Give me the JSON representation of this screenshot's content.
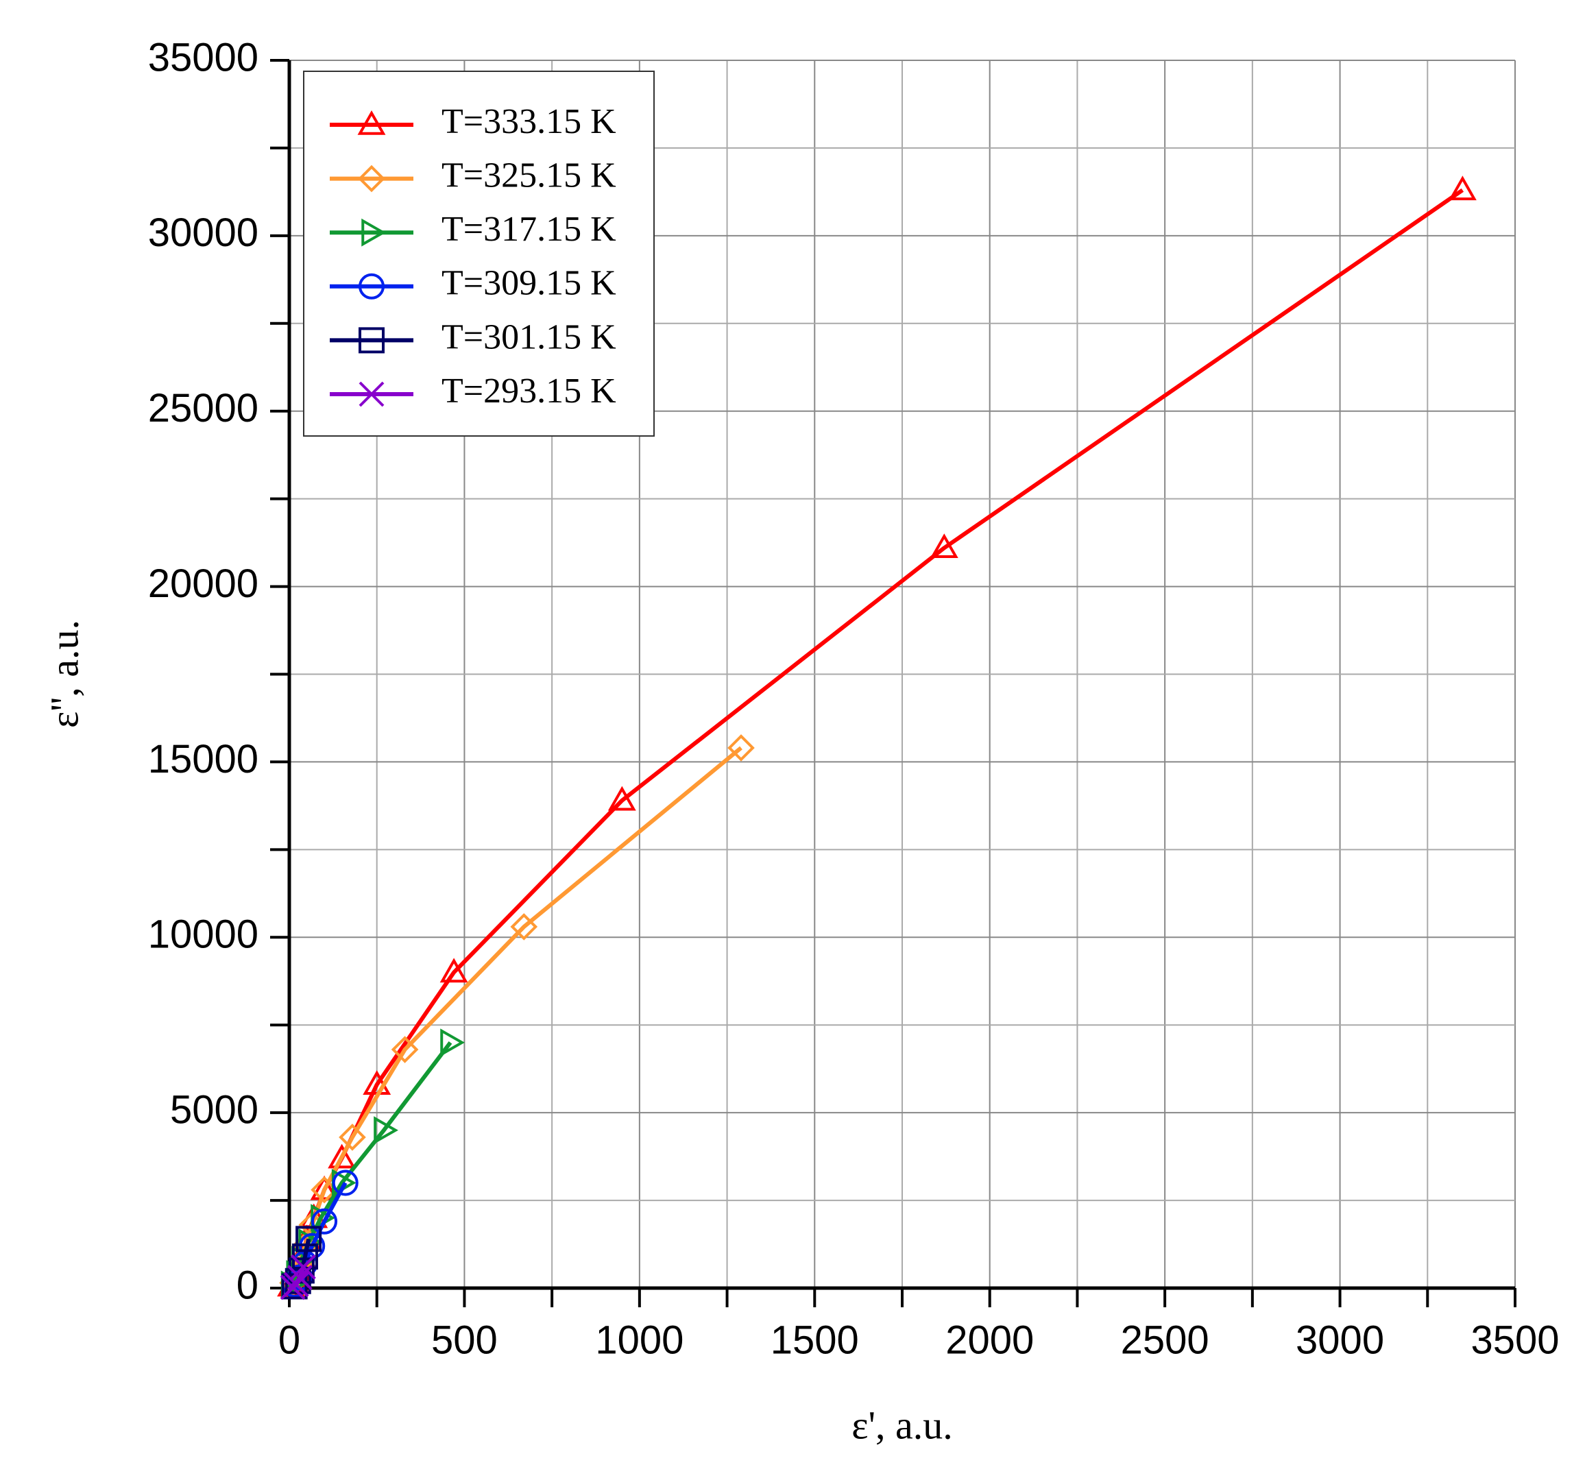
{
  "chart_data": {
    "type": "line",
    "xlabel": "ε', a.u.",
    "ylabel": "ε'', a.u.",
    "xlim": [
      0,
      3500
    ],
    "xticks": [
      0,
      500,
      1000,
      1500,
      2000,
      2500,
      3000,
      3500
    ],
    "ylim": [
      0,
      35000
    ],
    "yticks": [
      0,
      5000,
      10000,
      15000,
      20000,
      25000,
      30000,
      35000
    ],
    "grid": true,
    "legend": "upper left",
    "series": [
      {
        "name": "T=333.15 K",
        "color": "#ff0000",
        "marker": "triangle-up",
        "x": [
          5,
          15,
          25,
          35,
          50,
          70,
          100,
          150,
          250,
          470,
          950,
          1870,
          3350
        ],
        "values": [
          50,
          200,
          500,
          900,
          1400,
          2000,
          2800,
          3700,
          5800,
          9000,
          13900,
          21100,
          31300
        ]
      },
      {
        "name": "T=325.15 K",
        "color": "#ff9933",
        "marker": "diamond",
        "x": [
          10,
          20,
          30,
          45,
          65,
          100,
          180,
          330,
          670,
          1290
        ],
        "values": [
          150,
          400,
          700,
          1200,
          1800,
          2800,
          4300,
          6800,
          10300,
          15400
        ]
      },
      {
        "name": "T=317.15 K",
        "color": "#119933",
        "marker": "triangle-right",
        "x": [
          5,
          20,
          35,
          55,
          90,
          150,
          270,
          460
        ],
        "values": [
          100,
          400,
          800,
          1300,
          2000,
          3000,
          4500,
          7000
        ]
      },
      {
        "name": "T=309.15 K",
        "color": "#0022ee",
        "marker": "circle",
        "x": [
          15,
          30,
          45,
          65,
          100,
          160
        ],
        "values": [
          100,
          300,
          700,
          1200,
          1900,
          3000
        ]
      },
      {
        "name": "T=301.15 K",
        "color": "#000066",
        "marker": "square",
        "x": [
          15,
          25,
          35,
          45,
          55
        ],
        "values": [
          50,
          200,
          500,
          900,
          1400
        ]
      },
      {
        "name": "T=293.15 K",
        "color": "#8800cc",
        "marker": "cross",
        "x": [
          10,
          20,
          30,
          40
        ],
        "values": [
          20,
          100,
          300,
          600
        ]
      }
    ]
  }
}
